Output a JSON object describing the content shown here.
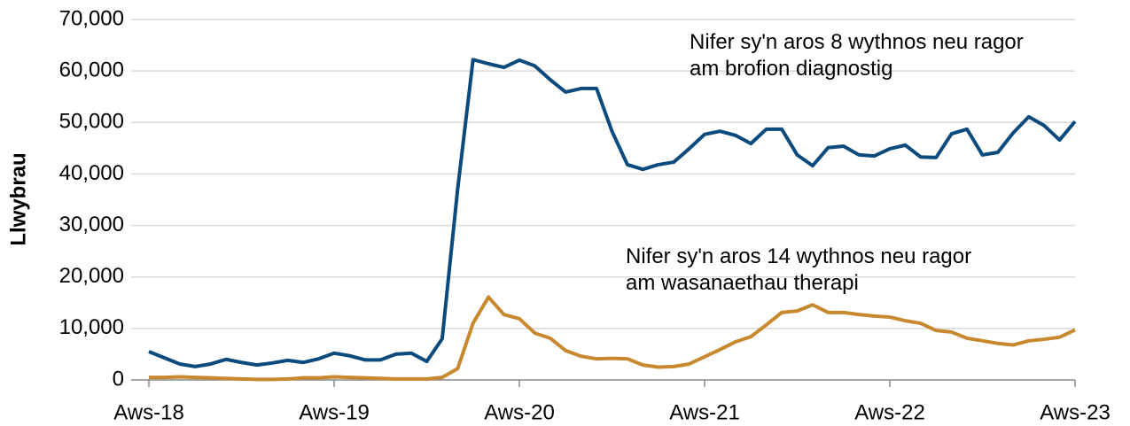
{
  "chart_data": {
    "type": "line",
    "y_label": "Llwybrau",
    "categories": [
      "Aws-18",
      null,
      null,
      null,
      null,
      null,
      null,
      null,
      null,
      null,
      null,
      null,
      "Aws-19",
      null,
      null,
      null,
      null,
      null,
      null,
      null,
      null,
      null,
      null,
      null,
      "Aws-20",
      null,
      null,
      null,
      null,
      null,
      null,
      null,
      null,
      null,
      null,
      null,
      "Aws-21",
      null,
      null,
      null,
      null,
      null,
      null,
      null,
      null,
      null,
      null,
      null,
      "Aws-22",
      null,
      null,
      null,
      null,
      null,
      null,
      null,
      null,
      null,
      null,
      null,
      "Aws-23"
    ],
    "series": [
      {
        "name": "Nifer sy'n aros 8 wythnos neu ragor am brofion diagnostig",
        "color": "#0b4a7d",
        "values": [
          5500,
          4300,
          3100,
          2600,
          3100,
          4000,
          3400,
          2900,
          3300,
          3800,
          3400,
          4100,
          5200,
          4700,
          3900,
          3900,
          5000,
          5200,
          3600,
          8000,
          37000,
          62200,
          61400,
          60700,
          62100,
          61000,
          58300,
          55900,
          56600,
          56600,
          48300,
          41800,
          40900,
          41800,
          42300,
          44900,
          47700,
          48300,
          47500,
          45900,
          48700,
          48700,
          43700,
          41600,
          45100,
          45400,
          43700,
          43500,
          44900,
          45600,
          43300,
          43200,
          47800,
          48700,
          43700,
          44200,
          48000,
          51100,
          49400,
          46600,
          50200
        ]
      },
      {
        "name": "Nifer sy'n aros 14 wythnos neu ragor am wasanaethau therapi",
        "color": "#c8892e",
        "values": [
          500,
          500,
          600,
          500,
          400,
          300,
          200,
          100,
          100,
          200,
          400,
          400,
          600,
          500,
          400,
          300,
          200,
          200,
          200,
          500,
          2200,
          11000,
          16100,
          12700,
          11900,
          9100,
          8100,
          5700,
          4600,
          4100,
          4200,
          4100,
          2900,
          2500,
          2600,
          3100,
          4500,
          5900,
          7400,
          8400,
          10700,
          13100,
          13400,
          14600,
          13100,
          13100,
          12700,
          12400,
          12200,
          11500,
          11000,
          9600,
          9300,
          8100,
          7600,
          7100,
          6800,
          7600,
          7900,
          8300,
          9700
        ]
      }
    ],
    "ylim": [
      0,
      70000
    ],
    "yticks": [
      0,
      {
        "value": 10000,
        "label": "10,000"
      },
      {
        "value": 20000,
        "label": "20,000"
      },
      {
        "value": 30000,
        "label": "30,000"
      },
      {
        "value": 40000,
        "label": "40,000"
      },
      {
        "value": 50000,
        "label": "50,000"
      },
      {
        "value": 60000,
        "label": "60,000"
      },
      {
        "value": 70000,
        "label": "70,000"
      }
    ],
    "grid": true
  }
}
